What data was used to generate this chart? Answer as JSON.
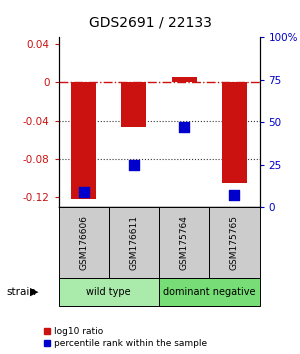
{
  "title": "GDS2691 / 22133",
  "samples": [
    "GSM176606",
    "GSM176611",
    "GSM175764",
    "GSM175765"
  ],
  "log10_ratio": [
    -0.122,
    -0.047,
    0.005,
    -0.105
  ],
  "percentile_rank": [
    9,
    25,
    47,
    7
  ],
  "ylim_left": [
    -0.13,
    0.047
  ],
  "ylim_right": [
    0,
    100
  ],
  "yticks_left": [
    0.04,
    0,
    -0.04,
    -0.08,
    -0.12
  ],
  "yticks_right": [
    100,
    75,
    50,
    25,
    0
  ],
  "groups": [
    {
      "label": "wild type",
      "samples": [
        0,
        1
      ],
      "color": "#aaeaaa"
    },
    {
      "label": "dominant negative",
      "samples": [
        2,
        3
      ],
      "color": "#77dd77"
    }
  ],
  "bar_color": "#cc1111",
  "dot_color": "#0000cc",
  "bar_width": 0.5,
  "zero_line_color": "#cc1111",
  "grid_color": "#333333",
  "bg_color": "#ffffff",
  "sample_box_color": "#cccccc",
  "legend_red_label": "log10 ratio",
  "legend_blue_label": "percentile rank within the sample"
}
